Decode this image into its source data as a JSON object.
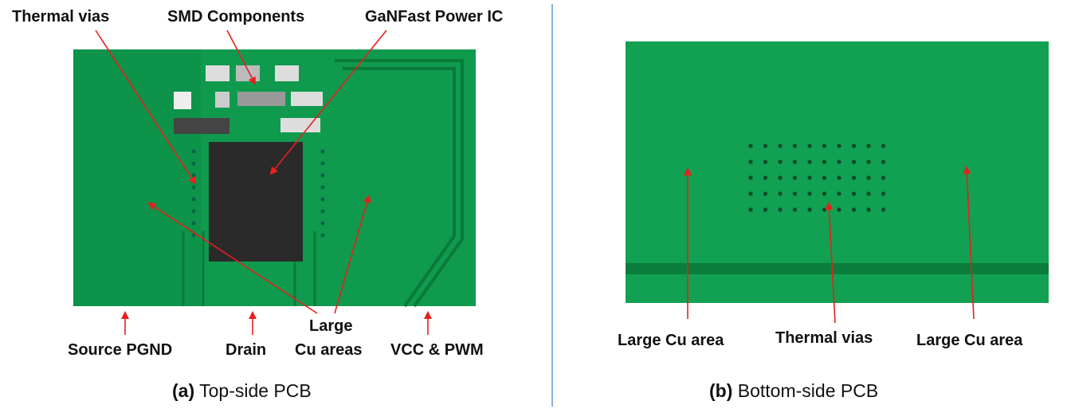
{
  "left_panel": {
    "labels": {
      "thermal_vias": "Thermal vias",
      "smd_components": "SMD Components",
      "ganfast_ic": "GaNFast Power IC",
      "source_pgnd": "Source PGND",
      "drain": "Drain",
      "large_line1": "Large",
      "large_line2": "Cu areas",
      "vcc_pwm": "VCC & PWM"
    },
    "caption_prefix": "(a)",
    "caption_text": "Top-side PCB"
  },
  "right_panel": {
    "labels": {
      "large_cu_left": "Large Cu area",
      "thermal_vias": "Thermal vias",
      "large_cu_right": "Large Cu area"
    },
    "caption_prefix": "(b)",
    "caption_text": "Bottom-side PCB"
  },
  "colors": {
    "pcb_green": "#0f9a4e",
    "arrow": "#e8201c",
    "divider": "#5b9bd5",
    "chip": "#2a2a2a"
  }
}
